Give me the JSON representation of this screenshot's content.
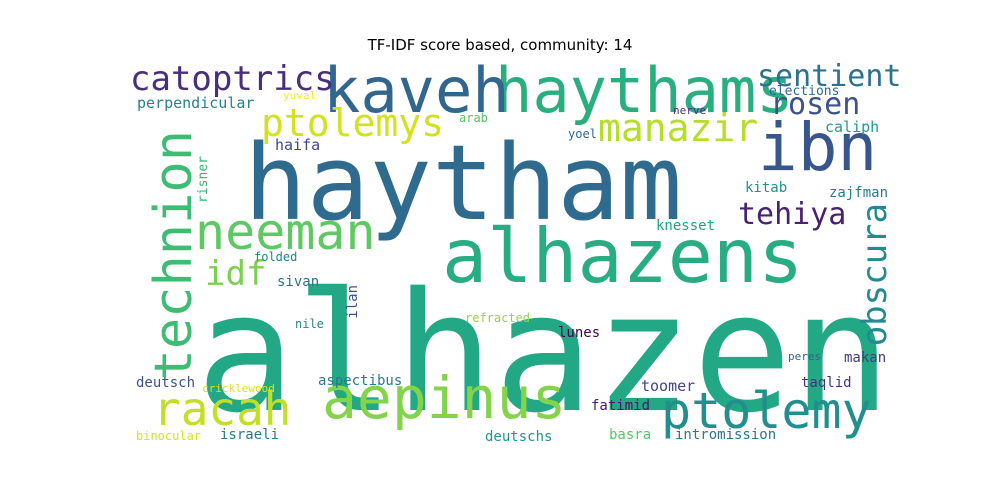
{
  "title": "TF-IDF score based, community: 14",
  "words": [
    {
      "text": "alhazen",
      "color": "#22a884"
    },
    {
      "text": "haytham",
      "color": "#2f6b8e"
    },
    {
      "text": "alhazens",
      "color": "#27ad81"
    },
    {
      "text": "haythams",
      "color": "#29af7f"
    },
    {
      "text": "kaveh",
      "color": "#31668e"
    },
    {
      "text": "ibn",
      "color": "#39568c"
    },
    {
      "text": "aepinus",
      "color": "#84d44b"
    },
    {
      "text": "ptolemy",
      "color": "#218f8d"
    },
    {
      "text": "racah",
      "color": "#c2df23"
    },
    {
      "text": "technion",
      "color": "#3fbc73"
    },
    {
      "text": "neeman",
      "color": "#5ec962"
    },
    {
      "text": "catoptrics",
      "color": "#472f7d"
    },
    {
      "text": "ptolemys",
      "color": "#d2e21b"
    },
    {
      "text": "manazir",
      "color": "#b5de2b"
    },
    {
      "text": "sentient",
      "color": "#2c728e"
    },
    {
      "text": "rosen",
      "color": "#3b528b"
    },
    {
      "text": "tehiya",
      "color": "#482173"
    },
    {
      "text": "obscura",
      "color": "#238a8d"
    },
    {
      "text": "idf",
      "color": "#7ad151"
    },
    {
      "text": "perpendicular",
      "color": "#26828e"
    },
    {
      "text": "caliph",
      "color": "#1f9e89"
    },
    {
      "text": "haifa",
      "color": "#3e4989"
    },
    {
      "text": "kitab",
      "color": "#21918c"
    },
    {
      "text": "zajfman",
      "color": "#297b8e"
    },
    {
      "text": "knesset",
      "color": "#1fa188"
    },
    {
      "text": "sivan",
      "color": "#2c728e"
    },
    {
      "text": "ilan",
      "color": "#3b528b"
    },
    {
      "text": "risner",
      "color": "#35b779"
    },
    {
      "text": "yuval",
      "color": "#fde725"
    },
    {
      "text": "elections",
      "color": "#31688e"
    },
    {
      "text": "nerve",
      "color": "#46327e"
    },
    {
      "text": "yoel",
      "color": "#306a8e"
    },
    {
      "text": "arab",
      "color": "#52c569"
    },
    {
      "text": "folded",
      "color": "#26828e"
    },
    {
      "text": "nile",
      "color": "#25858e"
    },
    {
      "text": "refracted",
      "color": "#8fd744"
    },
    {
      "text": "lunes",
      "color": "#440154"
    },
    {
      "text": "peres",
      "color": "#33638d"
    },
    {
      "text": "makan",
      "color": "#443a83"
    },
    {
      "text": "deutsch",
      "color": "#3b528b"
    },
    {
      "text": "cricklewood",
      "color": "#dde318"
    },
    {
      "text": "aspectibus",
      "color": "#2a788e"
    },
    {
      "text": "toomer",
      "color": "#414487"
    },
    {
      "text": "taqlid",
      "color": "#46337e"
    },
    {
      "text": "fatimid",
      "color": "#481769"
    },
    {
      "text": "binocular",
      "color": "#d8e219"
    },
    {
      "text": "israeli",
      "color": "#2a788e"
    },
    {
      "text": "deutschs",
      "color": "#1f958b"
    },
    {
      "text": "basra",
      "color": "#58c765"
    },
    {
      "text": "intromission",
      "color": "#2a778e"
    }
  ]
}
